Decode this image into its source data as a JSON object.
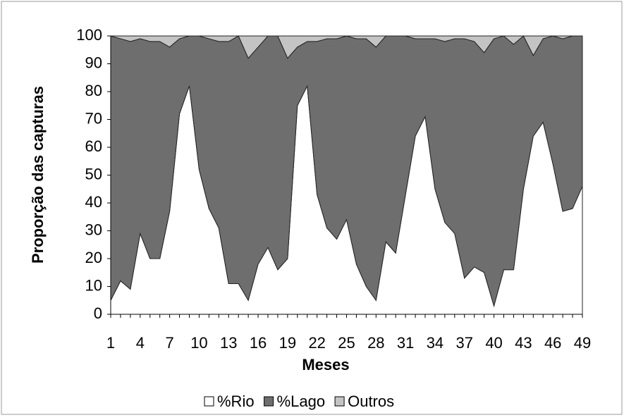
{
  "chart_data": {
    "type": "stacked_area",
    "y_label": "Proporção das capturas",
    "x_label": "Meses",
    "categories": [
      "1",
      null,
      null,
      "4",
      null,
      null,
      "7",
      null,
      null,
      "10",
      null,
      null,
      "13",
      null,
      null,
      "16",
      null,
      null,
      "19",
      null,
      null,
      "22",
      null,
      null,
      "25",
      null,
      null,
      "28",
      null,
      null,
      "31",
      null,
      null,
      "34",
      null,
      null,
      "37",
      null,
      null,
      "40",
      null,
      null,
      "43",
      null,
      null,
      "46",
      null,
      null,
      "49"
    ],
    "series": [
      {
        "name": "%Rio",
        "color": "#ffffff",
        "values": [
          5,
          12,
          9,
          29,
          20,
          20,
          37,
          72,
          82,
          52,
          38,
          31,
          11,
          11,
          5,
          18,
          24,
          16,
          20,
          75,
          82,
          43,
          31,
          27,
          34,
          18,
          10,
          5,
          26,
          22,
          43,
          64,
          71,
          45,
          33,
          29,
          13,
          17,
          15,
          3,
          16,
          16,
          45,
          64,
          69,
          54,
          37,
          38,
          46
        ]
      },
      {
        "name": "%Lago",
        "color": "#6e6e6e",
        "values": [
          95,
          87,
          89,
          70,
          78,
          78,
          59,
          27,
          18,
          48,
          61,
          67,
          87,
          89,
          87,
          78,
          76,
          84,
          72,
          21,
          16,
          55,
          68,
          72,
          66,
          81,
          89,
          91,
          74,
          78,
          57,
          35,
          28,
          54,
          65,
          70,
          86,
          81,
          79,
          96,
          84,
          81,
          55,
          29,
          30,
          46,
          62,
          62,
          54
        ]
      },
      {
        "name": "Outros",
        "color": "#c4c4c4",
        "values": [
          0,
          1,
          2,
          1,
          2,
          2,
          4,
          1,
          0,
          0,
          1,
          2,
          2,
          0,
          8,
          4,
          0,
          0,
          8,
          4,
          2,
          2,
          1,
          1,
          0,
          1,
          1,
          4,
          0,
          0,
          0,
          1,
          1,
          1,
          2,
          1,
          1,
          2,
          6,
          1,
          0,
          3,
          0,
          7,
          1,
          0,
          1,
          0,
          0
        ]
      }
    ],
    "ylim": [
      0,
      100
    ],
    "yticks": [
      0,
      10,
      20,
      30,
      40,
      50,
      60,
      70,
      80,
      90,
      100
    ],
    "grid": false,
    "legend": "bottom"
  }
}
